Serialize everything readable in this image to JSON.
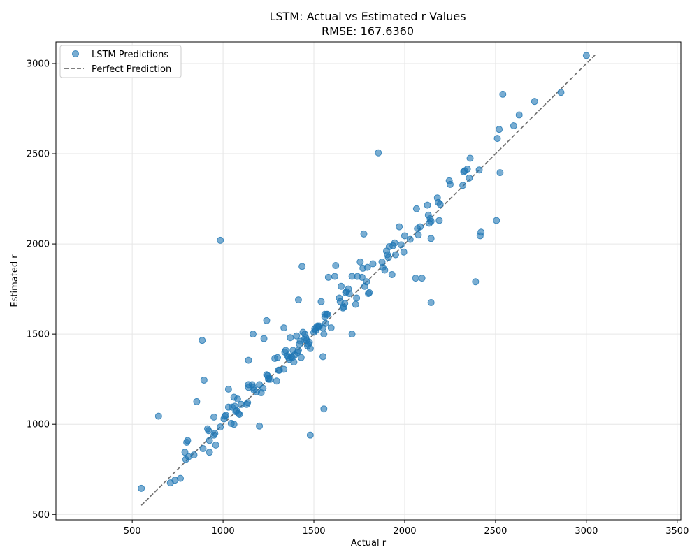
{
  "chart_data": {
    "type": "scatter",
    "title": "LSTM: Actual vs Estimated r Values",
    "subtitle": "RMSE: 167.6360",
    "xlabel": "Actual r",
    "ylabel": "Estimated r",
    "xlim": [
      80,
      3520
    ],
    "ylim": [
      470,
      3120
    ],
    "xticks": [
      500,
      1000,
      1500,
      2000,
      2500,
      3000,
      3500
    ],
    "yticks": [
      500,
      1000,
      1500,
      2000,
      2500,
      3000
    ],
    "grid": true,
    "legend_position": "top-left",
    "legend": [
      "LSTM Predictions",
      "Perfect Prediction"
    ],
    "colors": {
      "points": "#1f77b4",
      "reference_line": "#555555",
      "grid": "#e6e6e6"
    },
    "perfect_line": {
      "x": [
        550,
        3050
      ],
      "y": [
        550,
        3050
      ]
    },
    "series": [
      {
        "name": "LSTM Predictions",
        "x": [
          550,
          710,
          735,
          765,
          790,
          795,
          800,
          805,
          810,
          840,
          855,
          890,
          895,
          915,
          920,
          925,
          925,
          950,
          950,
          955,
          960,
          985,
          1005,
          1010,
          1015,
          1030,
          1030,
          1045,
          1050,
          1060,
          1060,
          1065,
          1070,
          1075,
          1080,
          1085,
          1090,
          1100,
          1130,
          1135,
          1140,
          1140,
          1160,
          1165,
          1170,
          1185,
          1200,
          1210,
          1220,
          1225,
          1240,
          1245,
          1250,
          1250,
          1260,
          1285,
          1295,
          1300,
          1305,
          1310,
          1335,
          1340,
          1345,
          1355,
          1360,
          1365,
          1370,
          1375,
          1380,
          1385,
          1390,
          1395,
          1405,
          1410,
          1415,
          1420,
          1425,
          1430,
          1440,
          1445,
          1450,
          1455,
          1460,
          1465,
          1470,
          1475,
          1480,
          1500,
          1505,
          1510,
          1515,
          1520,
          1525,
          1530,
          1540,
          1550,
          1555,
          1560,
          1560,
          1565,
          1570,
          1575,
          1580,
          1595,
          1615,
          1620,
          1640,
          1645,
          1650,
          1660,
          1665,
          1670,
          1675,
          1680,
          1690,
          1695,
          1710,
          1730,
          1735,
          1740,
          1755,
          1765,
          1770,
          1780,
          1790,
          1795,
          1800,
          1805,
          1825,
          1855,
          1875,
          1880,
          1890,
          1900,
          1905,
          1910,
          1915,
          1930,
          1935,
          1945,
          1950,
          1970,
          1980,
          1995,
          2000,
          2030,
          2065,
          2070,
          2075,
          2085,
          2095,
          2125,
          2130,
          2135,
          2140,
          2145,
          2145,
          2180,
          2185,
          2190,
          2195,
          2245,
          2250,
          2320,
          2325,
          2330,
          2345,
          2355,
          2360,
          2390,
          2410,
          2415,
          2420,
          2505,
          2510,
          2520,
          2525,
          2540,
          2600,
          2630,
          2715,
          2860,
          3000,
          645,
          985,
          885,
          1435,
          1415,
          1240,
          1165,
          1140,
          1335,
          1480,
          1555,
          1200,
          1550,
          1710,
          1775,
          2145,
          2060
        ],
        "y": [
          645,
          675,
          690,
          700,
          845,
          805,
          900,
          910,
          820,
          830,
          1125,
          865,
          1245,
          975,
          965,
          845,
          910,
          1040,
          940,
          950,
          885,
          985,
          1030,
          1045,
          1050,
          1195,
          1095,
          1005,
          1095,
          1000,
          1150,
          1100,
          1070,
          1075,
          1140,
          1060,
          1055,
          1110,
          1110,
          1120,
          1220,
          1205,
          1220,
          1205,
          1190,
          1180,
          1220,
          1175,
          1200,
          1475,
          1275,
          1270,
          1250,
          1255,
          1250,
          1365,
          1240,
          1370,
          1300,
          1300,
          1305,
          1400,
          1410,
          1380,
          1370,
          1360,
          1480,
          1375,
          1370,
          1410,
          1345,
          1385,
          1490,
          1400,
          1410,
          1445,
          1460,
          1370,
          1510,
          1470,
          1500,
          1480,
          1465,
          1435,
          1445,
          1455,
          1420,
          1510,
          1530,
          1520,
          1540,
          1545,
          1540,
          1545,
          1680,
          1535,
          1500,
          1595,
          1610,
          1560,
          1610,
          1610,
          1815,
          1535,
          1820,
          1880,
          1700,
          1680,
          1765,
          1645,
          1650,
          1670,
          1730,
          1735,
          1750,
          1725,
          1820,
          1665,
          1700,
          1820,
          1900,
          1815,
          1865,
          1765,
          1790,
          1870,
          1725,
          1730,
          1890,
          2505,
          1900,
          1870,
          1855,
          1960,
          1940,
          1925,
          1985,
          1830,
          1990,
          2005,
          1940,
          2095,
          1995,
          1955,
          2045,
          2025,
          2195,
          2085,
          2050,
          2095,
          1810,
          2215,
          2160,
          2115,
          2140,
          2030,
          2125,
          2255,
          2230,
          2130,
          2220,
          2350,
          2330,
          2325,
          2400,
          2405,
          2415,
          2365,
          2475,
          1790,
          2410,
          2045,
          2065,
          2130,
          2585,
          2635,
          2395,
          2830,
          2655,
          2715,
          2790,
          2840,
          3045,
          1045,
          2020,
          1465,
          1875,
          1690,
          1575,
          1500,
          1355,
          1535,
          940,
          1085,
          990,
          1375,
          1500,
          2055,
          1675,
          1810
        ]
      }
    ]
  }
}
